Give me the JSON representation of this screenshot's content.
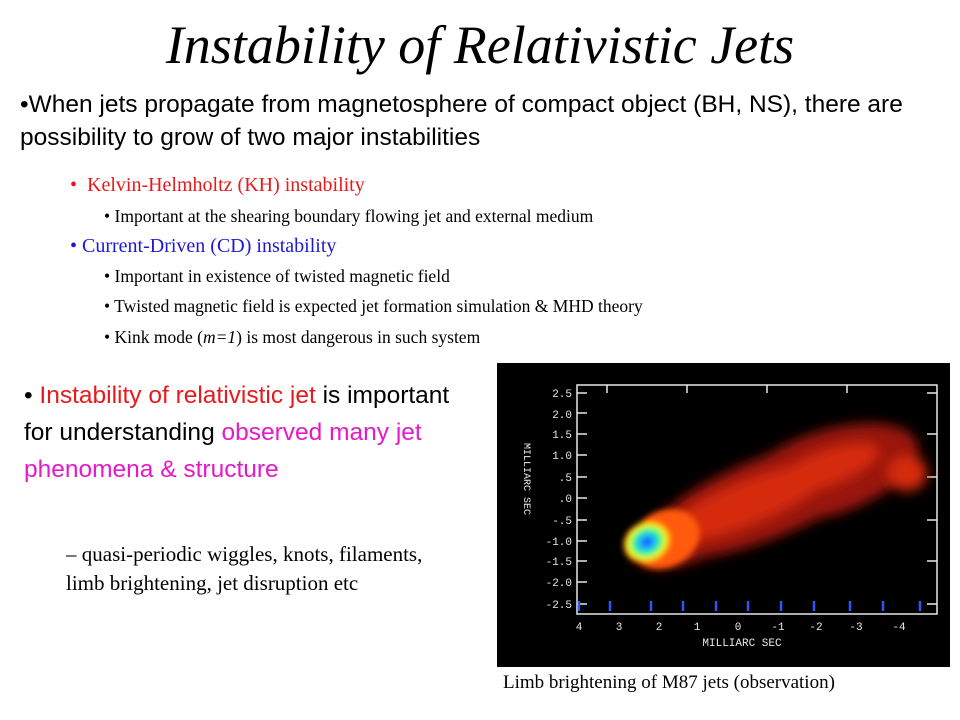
{
  "slide": {
    "title": "Instability of Relativistic Jets",
    "intro": {
      "bullet": "•",
      "text": "When jets propagate from magnetosphere of compact object (BH, NS), there are possibility to grow of two major instabilities"
    },
    "kh": {
      "bullet": "•",
      "label": "Kelvin-Helmholtz (KH) instability",
      "detail": "• Important at the shearing boundary flowing jet and external medium"
    },
    "cd": {
      "bullet": "•",
      "label": "Current-Driven (CD) instability",
      "details": [
        "• Important in existence of twisted magnetic field",
        "• Twisted magnetic field is expected jet formation simulation & MHD theory"
      ],
      "kink": {
        "pre": "•  Kink mode (",
        "mode": "m=1",
        "post": ") is most dangerous in such system"
      }
    },
    "importance": {
      "bullet": "•",
      "red_text": "Instability of relativistic jet",
      "black_text": "is important for understanding",
      "magenta_text": "observed many jet phenomena  & structure"
    },
    "phenomena": {
      "dash": "–",
      "text": "quasi-periodic wiggles, knots, filaments, limb brightening, jet disruption etc"
    },
    "figure": {
      "y_axis_label": "MILLIARC SEC",
      "x_axis_label": "MILLIARC SEC",
      "y_ticks": [
        "2.5",
        "2.0",
        "1.5",
        "1.0",
        ".5",
        ".0",
        "-.5",
        "-1.0",
        "-1.5",
        "-2.0",
        "-2.5"
      ],
      "x_ticks": [
        "4",
        "3",
        "2",
        "1",
        "0",
        "-1",
        "-2",
        "-3",
        "-4"
      ],
      "caption": "Limb brightening of M87 jets (observation)"
    }
  }
}
